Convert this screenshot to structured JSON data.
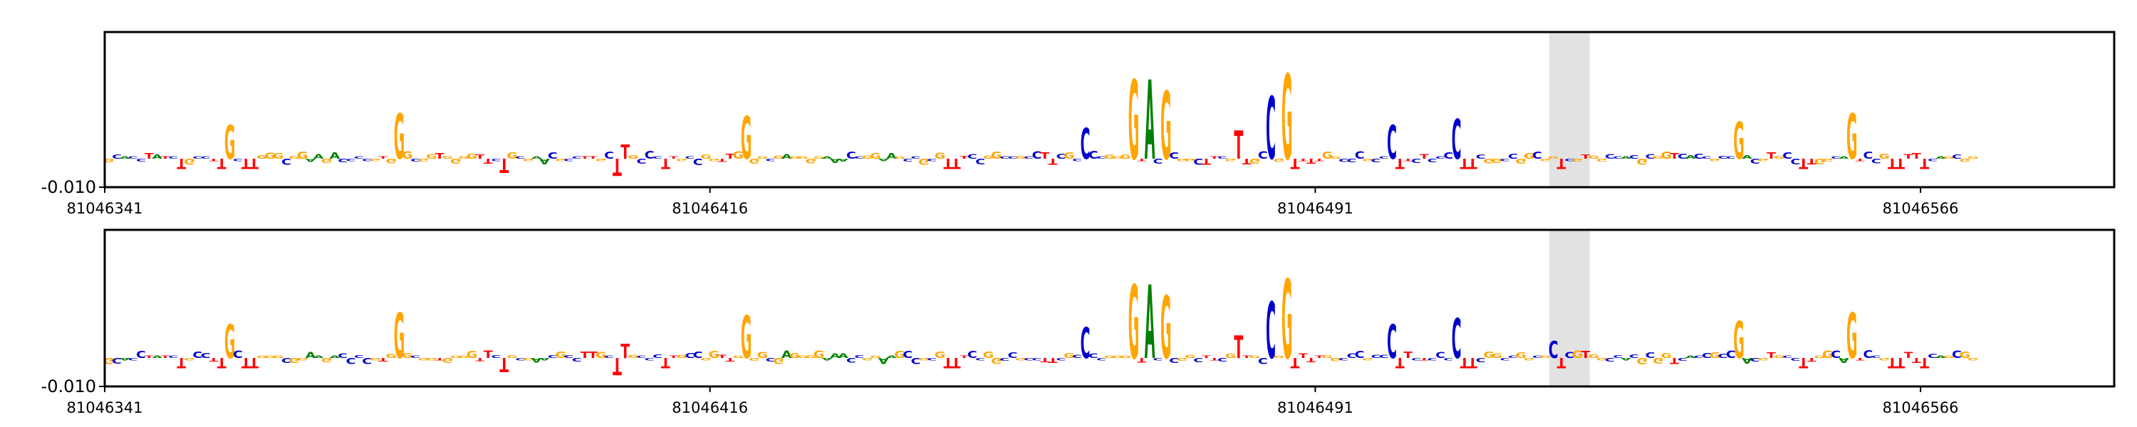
{
  "chart_data": [
    {
      "type": "sequence-logo",
      "panel": "top",
      "x_start": 81046341,
      "x_end": 81046590,
      "xticks": [
        81046341,
        81046416,
        81046491,
        81046566
      ],
      "xtick_labels": [
        "81046341",
        "81046416",
        "81046491",
        "81046566"
      ],
      "ytick_labels": [
        "-0.010"
      ],
      "highlight": [
        81046520,
        81046525
      ],
      "colors": {
        "A": "#008000",
        "C": "#0000cc",
        "G": "#ffa500",
        "T": "#ff0000",
        "highlight": "#e2e2e2"
      },
      "sequence": "GCACCTATCTGCCTTTCTTGGGCGGAAGACCCCGTGGGCGGTGGGGTTCCGCGAACGCCTTGCGCGCCCTTGCCGGTTGGGGCGAGGGGAAACCGGAAGCCGCGTTTCCGGCCGCCTTCGCCCCGGGTTCCCCGGCTTCGTTGCCGGTTTTGGCCCGCCTTTCTCCCGTTCGGCCGGCGGTCGTGGCCACGCGGTCACCGCCCACGTGCCTTGGCAGTCCGTTTTTCAGCGG",
      "peaks": [
        {
          "x": 81046356,
          "letter": "G",
          "value": 0.6
        },
        {
          "x": 81046377,
          "letter": "G",
          "value": 0.8
        },
        {
          "x": 81046390,
          "letter": "T",
          "value": -0.25
        },
        {
          "x": 81046404,
          "letter": "T",
          "value": -0.3
        },
        {
          "x": 81046405,
          "letter": "T",
          "value": 0.25
        },
        {
          "x": 81046420,
          "letter": "G",
          "value": 0.75
        },
        {
          "x": 81046462,
          "letter": "C",
          "value": 0.55
        },
        {
          "x": 81046468,
          "letter": "G",
          "value": 1.4
        },
        {
          "x": 81046470,
          "letter": "A",
          "value": 1.4
        },
        {
          "x": 81046472,
          "letter": "G",
          "value": 1.2
        },
        {
          "x": 81046481,
          "letter": "T",
          "value": 0.5
        },
        {
          "x": 81046485,
          "letter": "C",
          "value": 1.1
        },
        {
          "x": 81046487,
          "letter": "G",
          "value": 1.5
        },
        {
          "x": 81046500,
          "letter": "C",
          "value": 0.6
        },
        {
          "x": 81046508,
          "letter": "C",
          "value": 0.7
        },
        {
          "x": 81046543,
          "letter": "G",
          "value": 0.65
        },
        {
          "x": 81046557,
          "letter": "G",
          "value": 0.8
        }
      ]
    },
    {
      "type": "sequence-logo",
      "panel": "bottom",
      "x_start": 81046341,
      "x_end": 81046590,
      "xticks": [
        81046341,
        81046416,
        81046491,
        81046566
      ],
      "xtick_labels": [
        "81046341",
        "81046416",
        "81046491",
        "81046566"
      ],
      "ytick_labels": [
        "-0.010"
      ],
      "highlight": [
        81046520,
        81046525
      ],
      "colors": {
        "A": "#008000",
        "C": "#0000cc",
        "G": "#ffa500",
        "T": "#ff0000",
        "highlight": "#e2e2e2"
      },
      "sequence": "GCACCTATCTGCCTTTCTTGGGCGGAAGACCCCGTGGGCGGTGGGGTTCCGCGAACGCCTTGCGCGCCCTTGCCGGTTGGGGCGAGGGGAAACCGGAAGCCGCGTTTCCGGCCGCCTTCGCCCCGGGTTCCCCGGCTTCGTTGCCGGTTTTGGCCCGCCTTTCTCCCGTTCGGCCGGCGGTCGTGGCCACGCGGTCACCGCCCACGTGCCTTGGCAGTCCGTTTTTCAGCGG",
      "peaks": [
        {
          "x": 81046356,
          "letter": "G",
          "value": 0.6
        },
        {
          "x": 81046377,
          "letter": "G",
          "value": 0.8
        },
        {
          "x": 81046390,
          "letter": "T",
          "value": -0.25
        },
        {
          "x": 81046404,
          "letter": "T",
          "value": -0.3
        },
        {
          "x": 81046405,
          "letter": "T",
          "value": 0.25
        },
        {
          "x": 81046420,
          "letter": "G",
          "value": 0.75
        },
        {
          "x": 81046462,
          "letter": "C",
          "value": 0.55
        },
        {
          "x": 81046468,
          "letter": "G",
          "value": 1.3
        },
        {
          "x": 81046470,
          "letter": "A",
          "value": 1.3
        },
        {
          "x": 81046472,
          "letter": "G",
          "value": 1.1
        },
        {
          "x": 81046481,
          "letter": "T",
          "value": 0.4
        },
        {
          "x": 81046485,
          "letter": "C",
          "value": 1.0
        },
        {
          "x": 81046487,
          "letter": "G",
          "value": 1.4
        },
        {
          "x": 81046500,
          "letter": "C",
          "value": 0.6
        },
        {
          "x": 81046508,
          "letter": "C",
          "value": 0.7
        },
        {
          "x": 81046520,
          "letter": "C",
          "value": 0.3
        },
        {
          "x": 81046543,
          "letter": "G",
          "value": 0.65
        },
        {
          "x": 81046557,
          "letter": "G",
          "value": 0.8
        }
      ]
    }
  ]
}
